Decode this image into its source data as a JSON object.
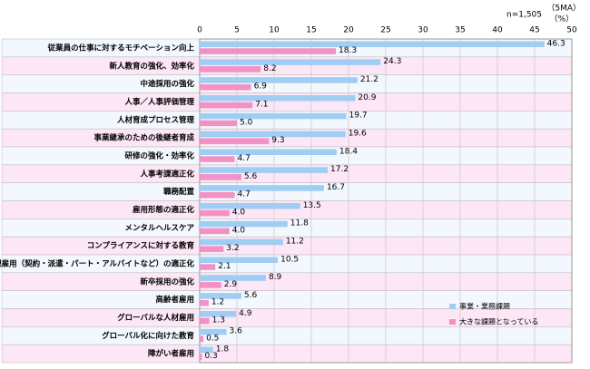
{
  "chart_data": {
    "type": "hbar",
    "notes": [
      "n=1,505",
      "（5MA）",
      "（%）"
    ],
    "categories": [
      "従業員の仕事に対するモチベーション向上",
      "新人教育の強化、効率化",
      "中途採用の強化",
      "人事／人事評価管理",
      "人材育成プロセス管理",
      "事業継承のための後継者育成",
      "研修の強化・効率化",
      "人事考課適正化",
      "職務配置",
      "雇用形態の適正化",
      "メンタルヘルスケア",
      "コンプライアンスに対する教育",
      "非正規雇用（契約・派遣・パート・アルバイトなど）の適正化",
      "新卒採用の強化",
      "高齢者雇用",
      "グローバルな人材雇用",
      "グローバル化に向けた教育",
      "障がい者雇用"
    ],
    "series": [
      {
        "name": "事業・業務課題",
        "color": "#9fcdf3",
        "values": [
          46.3,
          24.3,
          21.2,
          20.9,
          19.7,
          19.6,
          18.4,
          17.2,
          16.7,
          13.5,
          11.8,
          11.2,
          10.5,
          8.9,
          5.6,
          4.9,
          3.6,
          1.8
        ],
        "value_labels": [
          "46.3",
          "24.3",
          "21.2",
          "20.9",
          "19.7",
          "19.6",
          "18.4",
          "17.2",
          "16.7",
          "13.5",
          "11.8",
          "11.2",
          "10.5",
          "8.9",
          "5.6",
          "4.9",
          "3.6",
          "1.8"
        ]
      },
      {
        "name": "大きな課題となっている",
        "color": "#f291c3",
        "values": [
          18.3,
          8.2,
          6.9,
          7.1,
          5.0,
          9.3,
          4.7,
          5.6,
          4.7,
          4.0,
          4.0,
          3.2,
          2.1,
          2.9,
          1.2,
          1.3,
          0.5,
          0.3
        ],
        "value_labels": [
          "18.3",
          "8.2",
          "6.9",
          "7.1",
          "5.0",
          "9.3",
          "4.7",
          "5.6",
          "4.7",
          "4.0",
          "4.0",
          "3.2",
          "2.1",
          "2.9",
          "1.2",
          "1.3",
          "0.5",
          "0.3"
        ]
      }
    ],
    "xlim": [
      0,
      50
    ],
    "xticks": [
      0,
      5,
      10,
      15,
      20,
      25,
      30,
      35,
      40,
      45,
      50
    ],
    "grid": true,
    "legend": "lower right"
  }
}
